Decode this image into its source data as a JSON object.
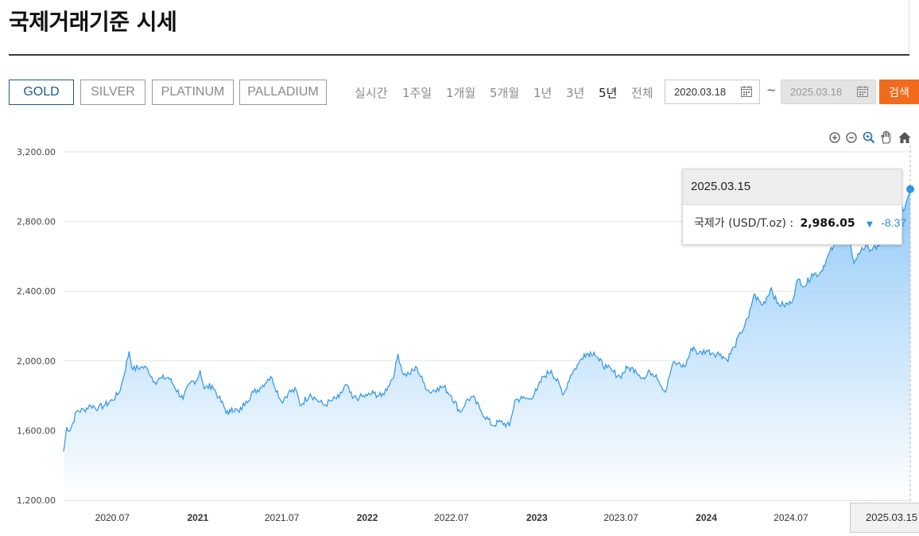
{
  "page": {
    "title": "국제거래기준 시세"
  },
  "metal_tabs": [
    {
      "label": "GOLD",
      "active": true
    },
    {
      "label": "SILVER",
      "active": false
    },
    {
      "label": "PLATINUM",
      "active": false
    },
    {
      "label": "PALLADIUM",
      "active": false
    }
  ],
  "periods": [
    {
      "label": "실시간",
      "active": false
    },
    {
      "label": "1주일",
      "active": false
    },
    {
      "label": "1개월",
      "active": false
    },
    {
      "label": "5개월",
      "active": false
    },
    {
      "label": "1년",
      "active": false
    },
    {
      "label": "3년",
      "active": false
    },
    {
      "label": "5년",
      "active": true
    },
    {
      "label": "전체",
      "active": false
    }
  ],
  "date_range": {
    "start": "2020.03.18",
    "separator": "~",
    "end": "2025.03.18",
    "end_disabled": true
  },
  "search_label": "검색",
  "toolbar_icons": [
    "zoom-in-icon",
    "zoom-out-icon",
    "magnifier-icon",
    "pan-hand-icon",
    "home-icon"
  ],
  "tooltip": {
    "date": "2025.03.15",
    "label": "국제가 (USD/T.oz) :",
    "value": "2,986.05",
    "direction": "down",
    "change": "-8.37"
  },
  "crosshair_label": "2025.03.15 (",
  "colors": {
    "line": "#2f95e8",
    "fill_top": "#8ec8f7",
    "fill_bottom": "#ffffff",
    "accent_orange": "#f26b1d",
    "active_tab": "#1d5a8f"
  },
  "chart_data": {
    "type": "area",
    "series": [
      {
        "x": [
          "2020-03-18",
          "2020-03-25",
          "2020-04-01",
          "2020-04-15",
          "2020-05-01",
          "2020-05-15",
          "2020-06-01",
          "2020-06-15",
          "2020-07-01",
          "2020-07-15",
          "2020-07-24",
          "2020-08-06",
          "2020-08-14",
          "2020-08-31",
          "2020-09-15",
          "2020-09-30",
          "2020-10-15",
          "2020-10-30",
          "2020-11-09",
          "2020-11-30",
          "2020-12-15",
          "2020-12-31",
          "2021-01-06",
          "2021-01-15",
          "2021-02-01",
          "2021-02-15",
          "2021-03-08",
          "2021-03-15",
          "2021-03-31",
          "2021-04-15",
          "2021-05-01",
          "2021-05-15",
          "2021-06-01",
          "2021-06-10",
          "2021-06-30",
          "2021-07-15",
          "2021-08-01",
          "2021-08-09",
          "2021-08-31",
          "2021-09-15",
          "2021-09-30",
          "2021-10-15",
          "2021-11-01",
          "2021-11-16",
          "2021-11-30",
          "2021-12-15",
          "2022-01-01",
          "2022-01-15",
          "2022-01-31",
          "2022-02-15",
          "2022-03-01",
          "2022-03-08",
          "2022-03-20",
          "2022-04-01",
          "2022-04-18",
          "2022-05-01",
          "2022-05-15",
          "2022-06-01",
          "2022-06-15",
          "2022-07-01",
          "2022-07-20",
          "2022-08-01",
          "2022-08-15",
          "2022-09-01",
          "2022-09-27",
          "2022-10-15",
          "2022-11-03",
          "2022-11-15",
          "2022-12-01",
          "2022-12-15",
          "2023-01-01",
          "2023-01-15",
          "2023-02-01",
          "2023-02-28",
          "2023-03-15",
          "2023-04-01",
          "2023-04-13",
          "2023-05-04",
          "2023-05-15",
          "2023-06-01",
          "2023-06-15",
          "2023-06-29",
          "2023-07-15",
          "2023-08-01",
          "2023-08-21",
          "2023-09-01",
          "2023-09-15",
          "2023-10-05",
          "2023-10-20",
          "2023-11-01",
          "2023-11-15",
          "2023-12-01",
          "2023-12-04",
          "2023-12-15",
          "2024-01-01",
          "2024-01-15",
          "2024-02-01",
          "2024-02-14",
          "2024-03-01",
          "2024-03-15",
          "2024-04-01",
          "2024-04-12",
          "2024-05-01",
          "2024-05-20",
          "2024-06-01",
          "2024-06-15",
          "2024-07-01",
          "2024-07-17",
          "2024-08-01",
          "2024-08-15",
          "2024-09-01",
          "2024-09-15",
          "2024-10-01",
          "2024-10-30",
          "2024-11-14",
          "2024-12-01",
          "2024-12-15",
          "2025-01-01",
          "2025-01-15",
          "2025-02-01",
          "2025-02-11",
          "2025-02-28",
          "2025-03-15"
        ],
        "y": [
          1480,
          1620,
          1600,
          1710,
          1720,
          1745,
          1730,
          1745,
          1775,
          1815,
          1895,
          2055,
          1950,
          1965,
          1955,
          1880,
          1900,
          1905,
          1865,
          1780,
          1870,
          1895,
          1945,
          1840,
          1860,
          1790,
          1690,
          1730,
          1705,
          1770,
          1820,
          1845,
          1895,
          1900,
          1765,
          1820,
          1830,
          1745,
          1810,
          1775,
          1745,
          1770,
          1790,
          1865,
          1785,
          1790,
          1800,
          1815,
          1795,
          1855,
          1935,
          2040,
          1920,
          1925,
          1960,
          1880,
          1820,
          1845,
          1850,
          1800,
          1705,
          1765,
          1795,
          1720,
          1630,
          1650,
          1625,
          1775,
          1785,
          1780,
          1830,
          1910,
          1945,
          1810,
          1920,
          1985,
          2040,
          2050,
          2000,
          1960,
          1935,
          1910,
          1960,
          1950,
          1895,
          1940,
          1920,
          1820,
          1980,
          1985,
          1965,
          2070,
          2080,
          2040,
          2060,
          2045,
          2040,
          2005,
          2080,
          2160,
          2250,
          2380,
          2320,
          2420,
          2330,
          2320,
          2330,
          2470,
          2430,
          2500,
          2500,
          2580,
          2660,
          2785,
          2560,
          2650,
          2650,
          2640,
          2720,
          2780,
          2930,
          2860,
          2986.05
        ]
      }
    ],
    "y_ticks": [
      "1,200.00",
      "1,600.00",
      "2,000.00",
      "2,400.00",
      "2,800.00",
      "3,200.00"
    ],
    "ylim": [
      1200,
      3200
    ],
    "x_ticks": [
      {
        "label": "2020.07",
        "date": "2020-07-01",
        "bold": false
      },
      {
        "label": "2021",
        "date": "2021-01-01",
        "bold": true
      },
      {
        "label": "2021.07",
        "date": "2021-07-01",
        "bold": false
      },
      {
        "label": "2022",
        "date": "2022-01-01",
        "bold": true
      },
      {
        "label": "2022.07",
        "date": "2022-07-01",
        "bold": false
      },
      {
        "label": "2023",
        "date": "2023-01-01",
        "bold": true
      },
      {
        "label": "2023.07",
        "date": "2023-07-01",
        "bold": false
      },
      {
        "label": "2024",
        "date": "2024-01-01",
        "bold": true
      },
      {
        "label": "2024.07",
        "date": "2024-07-01",
        "bold": false
      }
    ],
    "xlim": [
      "2020-03-18",
      "2025-03-15"
    ],
    "grid": true,
    "legend": "none"
  }
}
